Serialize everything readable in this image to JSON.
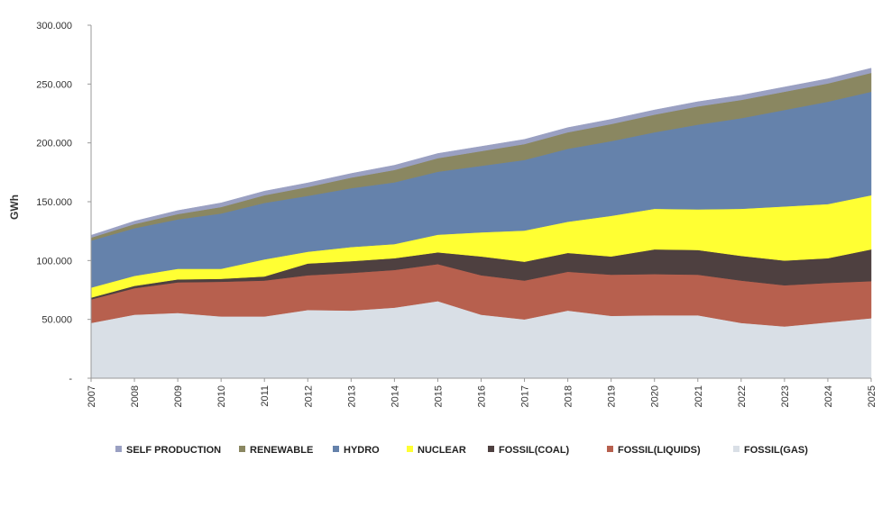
{
  "chart_data": {
    "type": "area",
    "stacked": true,
    "title": "",
    "xlabel": "",
    "ylabel": "GWh",
    "ylim": [
      0,
      300000
    ],
    "yticks": [
      0,
      50000,
      100000,
      150000,
      200000,
      250000,
      300000
    ],
    "ytick_labels": [
      "-",
      "50.000",
      "100.000",
      "150.000",
      "200.000",
      "250.000",
      "300.000"
    ],
    "x": [
      "2007",
      "2008",
      "2009",
      "2010",
      "2011",
      "2012",
      "2013",
      "2014",
      "2015",
      "2016",
      "2017",
      "2018",
      "2019",
      "2020",
      "2021",
      "2022",
      "2023",
      "2024",
      "2025"
    ],
    "grid": false,
    "legend_position": "bottom",
    "series": [
      {
        "name": "FOSSIL(GAS)",
        "color": "#d9dfe6",
        "values": [
          47000,
          54000,
          55500,
          52500,
          52500,
          58000,
          57500,
          60000,
          65500,
          54000,
          50000,
          57500,
          53000,
          53500,
          53500,
          47000,
          44000,
          47500,
          51000
        ]
      },
      {
        "name": "FOSSIL(LIQUIDS)",
        "color": "#b7604e",
        "values": [
          20000,
          22500,
          26000,
          29500,
          30500,
          29500,
          32000,
          32000,
          31500,
          33500,
          33000,
          33000,
          35000,
          35000,
          34500,
          36000,
          35000,
          33500,
          31500
        ]
      },
      {
        "name": "FOSSIL(COAL)",
        "color": "#4e4040",
        "values": [
          1500,
          2000,
          2500,
          2500,
          3500,
          10000,
          10000,
          10000,
          10000,
          16000,
          16000,
          16000,
          15500,
          21000,
          21000,
          21000,
          21000,
          21000,
          27000
        ]
      },
      {
        "name": "NUCLEAR",
        "color": "#ffff33",
        "values": [
          8500,
          8500,
          9000,
          8500,
          14500,
          10000,
          12000,
          12000,
          15000,
          20500,
          26500,
          26500,
          34500,
          34500,
          34500,
          40000,
          46000,
          46000,
          46000
        ]
      },
      {
        "name": "HYDRO",
        "color": "#6582ab",
        "values": [
          40000,
          40500,
          42000,
          47000,
          48000,
          47500,
          50000,
          52500,
          53500,
          56500,
          60000,
          62000,
          63500,
          65000,
          72000,
          77000,
          82000,
          87000,
          88000
        ]
      },
      {
        "name": "RENEWABLE",
        "color": "#8a8761",
        "values": [
          2500,
          3500,
          4500,
          5500,
          6500,
          7500,
          9000,
          10500,
          11500,
          12500,
          13500,
          14000,
          14500,
          15000,
          15500,
          15500,
          15500,
          15500,
          16000
        ]
      },
      {
        "name": "SELF PRODUCTION",
        "color": "#9aa0c2",
        "values": [
          2000,
          2500,
          3000,
          3500,
          3500,
          3500,
          3500,
          4000,
          4000,
          4000,
          4000,
          4000,
          4000,
          4000,
          4000,
          4000,
          4000,
          4000,
          4000
        ]
      }
    ],
    "legend_order": [
      "SELF PRODUCTION",
      "RENEWABLE",
      "HYDRO",
      "NUCLEAR",
      "FOSSIL(COAL)",
      "FOSSIL(LIQUIDS)",
      "FOSSIL(GAS)"
    ]
  }
}
